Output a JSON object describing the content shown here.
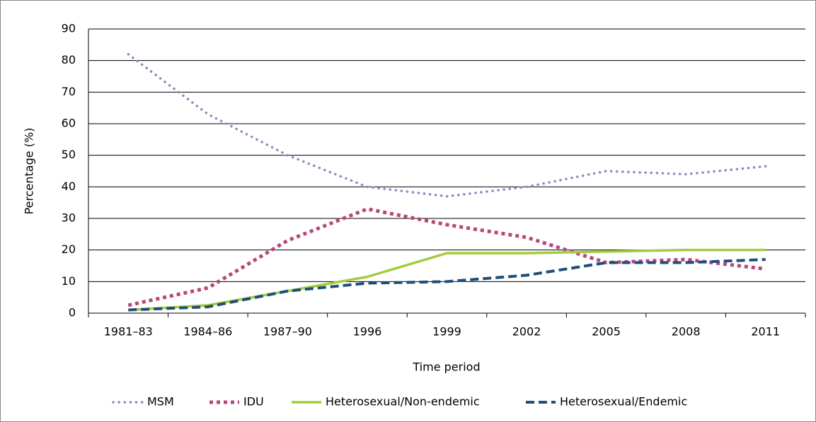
{
  "chart_data": {
    "type": "line",
    "x_label": "Time period",
    "y_label": "Percentage (%)",
    "categories": [
      "1981–83",
      "1984–86",
      "1987–90",
      "1996",
      "1999",
      "2002",
      "2005",
      "2008",
      "2011"
    ],
    "series": [
      {
        "name": "MSM",
        "color": "#8a89c0",
        "style": "dotted",
        "values": [
          82,
          63,
          50,
          40,
          37,
          40,
          45,
          44,
          46.5
        ]
      },
      {
        "name": "IDU",
        "color": "#b8467a",
        "style": "square-dotted",
        "values": [
          2.5,
          8,
          23,
          33,
          28,
          24,
          16,
          17,
          14
        ]
      },
      {
        "name": "Heterosexual/Non-endemic",
        "color": "#a3cc3c",
        "style": "solid",
        "values": [
          1,
          2.5,
          7,
          11.5,
          19,
          19,
          19.5,
          20,
          20
        ]
      },
      {
        "name": "Heterosexual/Endemic",
        "color": "#1f4e79",
        "style": "dashed",
        "values": [
          1,
          2,
          7,
          9.5,
          10,
          12,
          16,
          16,
          17
        ]
      }
    ],
    "ylim": [
      0,
      90
    ],
    "yticks": [
      0,
      10,
      20,
      30,
      40,
      50,
      60,
      70,
      80,
      90
    ],
    "grid": true
  }
}
